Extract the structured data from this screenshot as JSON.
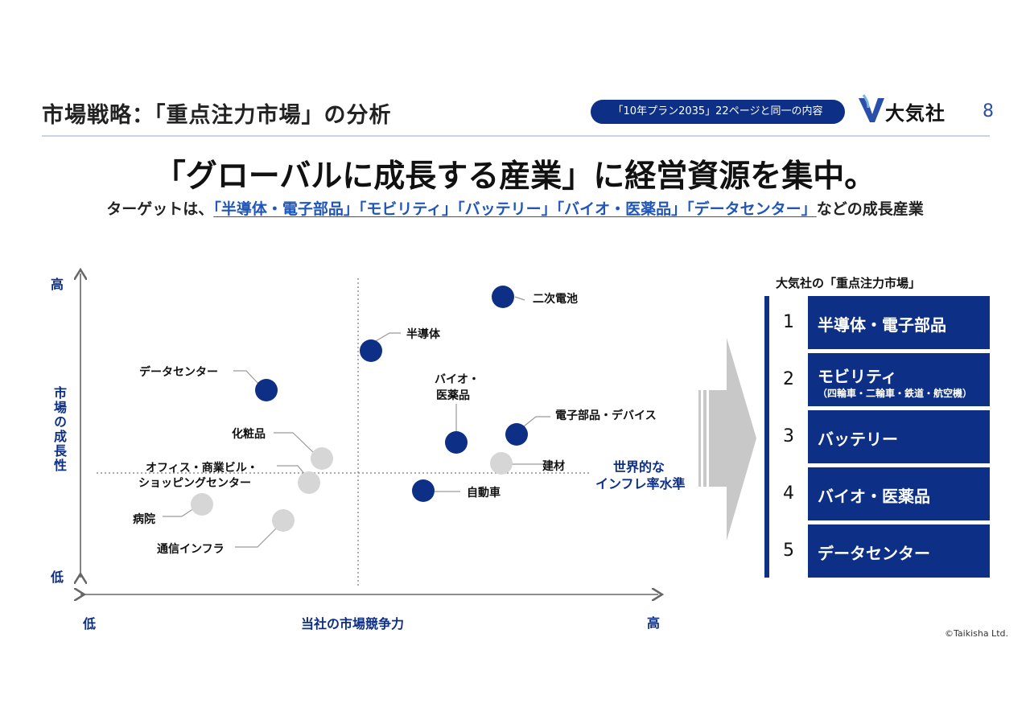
{
  "header": {
    "title": "市場戦略：「重点注力市場」の分析",
    "pill": "「10年プラン2035」22ページと同一の内容",
    "logo_text": "大気社",
    "page_number": "8"
  },
  "headline": "「グローバルに成長する産業」に経営資源を集中。",
  "subline": {
    "prefix": "ターゲットは、",
    "highlight": "「半導体・電子部品」「モビリティ」「バッテリー」「バイオ・医薬品」「データセンター」",
    "suffix": "などの成長産業"
  },
  "matrix": {
    "y_high": "高",
    "y_low": "低",
    "x_low": "低",
    "x_high": "高",
    "y_label": "市場の成長性",
    "x_label": "当社の市場競争力",
    "inflation_line1": "世界的な",
    "inflation_line2": "インフレ率水準",
    "colors": {
      "focus": "#0d2f86",
      "other": "#d6d6d6",
      "leader": "#9a9a9a"
    },
    "markets": [
      {
        "name": "二次電池",
        "focus": true
      },
      {
        "name": "半導体",
        "focus": true
      },
      {
        "name": "データセンター",
        "focus": true
      },
      {
        "name": "バイオ・",
        "name2": "医薬品",
        "focus": true
      },
      {
        "name": "電子部品・デバイス",
        "focus": true
      },
      {
        "name": "化粧品",
        "focus": false
      },
      {
        "name": "建材",
        "focus": false
      },
      {
        "name": "オフィス・商業ビル・",
        "name2": "ショッピングセンター",
        "focus": false
      },
      {
        "name": "自動車",
        "focus": true
      },
      {
        "name": "病院",
        "focus": false
      },
      {
        "name": "通信インフラ",
        "focus": false
      }
    ]
  },
  "targets": {
    "title": "大気社の「重点注力市場」",
    "items": [
      {
        "num": "1",
        "label": "半導体・電子部品",
        "sub": ""
      },
      {
        "num": "2",
        "label": "モビリティ",
        "sub": "（四輪車・二輪車・鉄道・航空機）"
      },
      {
        "num": "3",
        "label": "バッテリー",
        "sub": ""
      },
      {
        "num": "4",
        "label": "バイオ・医薬品",
        "sub": ""
      },
      {
        "num": "5",
        "label": "データセンター",
        "sub": ""
      }
    ]
  },
  "copyright": "©Taikisha Ltd."
}
